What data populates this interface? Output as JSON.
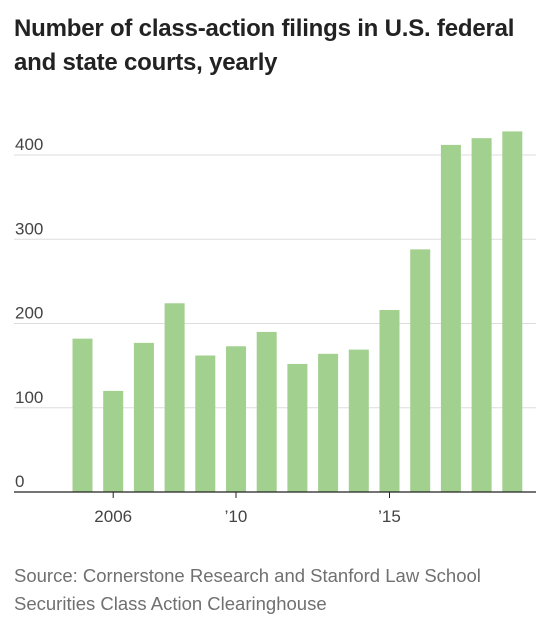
{
  "header": {
    "title": "Number of class-action filings in U.S. federal and state courts, yearly"
  },
  "footer": {
    "source": "Source: Cornerstone Research and Stanford Law School Securities Class Action Clearinghouse"
  },
  "colors": {
    "bar": "#a2d08f",
    "gridline": "#dddddd",
    "axis": "#222222"
  },
  "chart_data": {
    "type": "bar",
    "title": "Number of class-action filings in U.S. federal and state courts, yearly",
    "xlabel": "",
    "ylabel": "",
    "categories": [
      "2005",
      "2006",
      "2007",
      "2008",
      "2009",
      "2010",
      "2011",
      "2012",
      "2013",
      "2014",
      "2015",
      "2016",
      "2017",
      "2018",
      "2019"
    ],
    "values": [
      182,
      120,
      177,
      224,
      162,
      173,
      190,
      152,
      164,
      169,
      216,
      288,
      412,
      420,
      428
    ],
    "ylim": [
      0,
      440
    ],
    "yticks": [
      0,
      100,
      200,
      300,
      400
    ],
    "ytick_labels": [
      "0",
      "100",
      "200",
      "300",
      "400"
    ],
    "xticks": [
      {
        "category": "2006",
        "label": "2006"
      },
      {
        "category": "2010",
        "label": "’10"
      },
      {
        "category": "2015",
        "label": "’15"
      }
    ],
    "grid": true,
    "legend": "none"
  }
}
